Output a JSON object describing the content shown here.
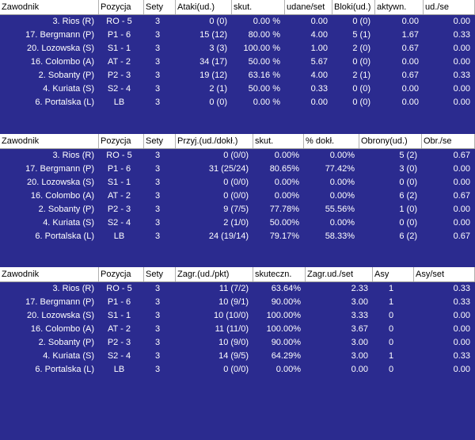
{
  "tables": [
    {
      "columns": [
        "Zawodnik",
        "Pozycja",
        "Sety",
        "Ataki(ud.)",
        "skut.",
        "udane/set",
        "Bloki(ud.)",
        "aktywn.",
        "ud./se"
      ],
      "rows": [
        [
          "3. Rios (R)",
          "RO - 5",
          "3",
          "0 (0)",
          "0.00 %",
          "0.00",
          "0 (0)",
          "0.00",
          "0.00"
        ],
        [
          "17. Bergmann (P)",
          "P1 - 6",
          "3",
          "15 (12)",
          "80.00 %",
          "4.00",
          "5 (1)",
          "1.67",
          "0.33"
        ],
        [
          "20. Lozowska (S)",
          "S1 - 1",
          "3",
          "3 (3)",
          "100.00 %",
          "1.00",
          "2 (0)",
          "0.67",
          "0.00"
        ],
        [
          "16. Colombo (A)",
          "AT - 2",
          "3",
          "34 (17)",
          "50.00 %",
          "5.67",
          "0 (0)",
          "0.00",
          "0.00"
        ],
        [
          "2. Sobanty (P)",
          "P2 - 3",
          "3",
          "19 (12)",
          "63.16 %",
          "4.00",
          "2 (1)",
          "0.67",
          "0.33"
        ],
        [
          "4. Kuriata (S)",
          "S2 - 4",
          "3",
          "2 (1)",
          "50.00 %",
          "0.33",
          "0 (0)",
          "0.00",
          "0.00"
        ],
        [
          "6. Portalska (L)",
          "LB",
          "3",
          "0 (0)",
          "0.00 %",
          "0.00",
          "0 (0)",
          "0.00",
          "0.00"
        ]
      ]
    },
    {
      "columns": [
        "Zawodnik",
        "Pozycja",
        "Sety",
        "Przyj.(ud./dokł.)",
        "skut.",
        "% dokł.",
        "Obrony(ud.)",
        "Obr./se"
      ],
      "rows": [
        [
          "3. Rios (R)",
          "RO - 5",
          "3",
          "0 (0/0)",
          "0.00%",
          "0.00%",
          "5 (2)",
          "0.67"
        ],
        [
          "17. Bergmann (P)",
          "P1 - 6",
          "3",
          "31 (25/24)",
          "80.65%",
          "77.42%",
          "3 (0)",
          "0.00"
        ],
        [
          "20. Lozowska (S)",
          "S1 - 1",
          "3",
          "0 (0/0)",
          "0.00%",
          "0.00%",
          "0 (0)",
          "0.00"
        ],
        [
          "16. Colombo (A)",
          "AT - 2",
          "3",
          "0 (0/0)",
          "0.00%",
          "0.00%",
          "6 (2)",
          "0.67"
        ],
        [
          "2. Sobanty (P)",
          "P2 - 3",
          "3",
          "9 (7/5)",
          "77.78%",
          "55.56%",
          "1 (0)",
          "0.00"
        ],
        [
          "4. Kuriata (S)",
          "S2 - 4",
          "3",
          "2 (1/0)",
          "50.00%",
          "0.00%",
          "0 (0)",
          "0.00"
        ],
        [
          "6. Portalska (L)",
          "LB",
          "3",
          "24 (19/14)",
          "79.17%",
          "58.33%",
          "6 (2)",
          "0.67"
        ]
      ]
    },
    {
      "columns": [
        "Zawodnik",
        "Pozycja",
        "Sety",
        "Zagr.(ud./pkt)",
        "skuteczn.",
        "Zagr.ud./set",
        "Asy",
        "Asy/set"
      ],
      "rows": [
        [
          "3. Rios (R)",
          "RO - 5",
          "3",
          "11 (7/2)",
          "63.64%",
          "2.33",
          "1",
          "0.33"
        ],
        [
          "17. Bergmann (P)",
          "P1 - 6",
          "3",
          "10 (9/1)",
          "90.00%",
          "3.00",
          "1",
          "0.33"
        ],
        [
          "20. Lozowska (S)",
          "S1 - 1",
          "3",
          "10 (10/0)",
          "100.00%",
          "3.33",
          "0",
          "0.00"
        ],
        [
          "16. Colombo (A)",
          "AT - 2",
          "3",
          "11 (11/0)",
          "100.00%",
          "3.67",
          "0",
          "0.00"
        ],
        [
          "2. Sobanty (P)",
          "P2 - 3",
          "3",
          "10 (9/0)",
          "90.00%",
          "3.00",
          "0",
          "0.00"
        ],
        [
          "4. Kuriata (S)",
          "S2 - 4",
          "3",
          "14 (9/5)",
          "64.29%",
          "3.00",
          "1",
          "0.33"
        ],
        [
          "6. Portalska (L)",
          "LB",
          "3",
          "0 (0/0)",
          "0.00%",
          "0.00",
          "0",
          "0.00"
        ]
      ]
    }
  ]
}
